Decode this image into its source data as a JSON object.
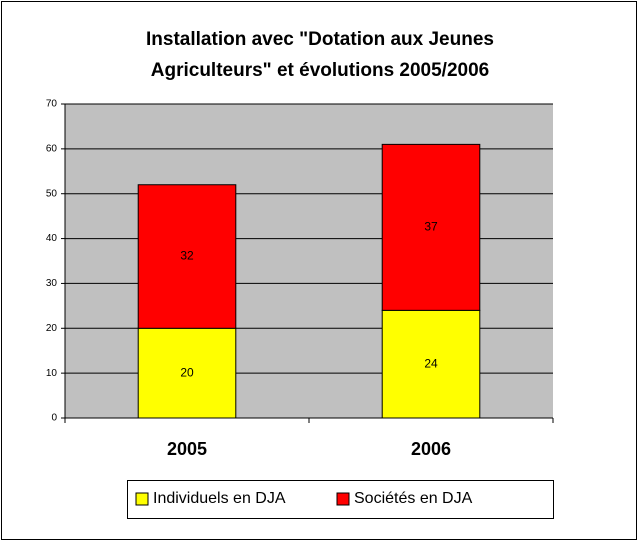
{
  "chart_data": {
    "type": "stacked_bar",
    "title": [
      "Installation avec \"Dotation aux Jeunes",
      "Agriculteurs\" et évolutions 2005/2006"
    ],
    "categories": [
      "2005",
      "2006"
    ],
    "series": [
      {
        "name": "Individuels en DJA",
        "color": "#ffff00",
        "values": [
          20,
          24
        ]
      },
      {
        "name": "Sociétés en DJA",
        "color": "#ff0000",
        "values": [
          32,
          37
        ]
      }
    ],
    "ylim": [
      0,
      70
    ],
    "yticks": [
      0,
      10,
      20,
      30,
      40,
      50,
      60,
      70
    ],
    "grid": true,
    "legend": "bottom"
  }
}
